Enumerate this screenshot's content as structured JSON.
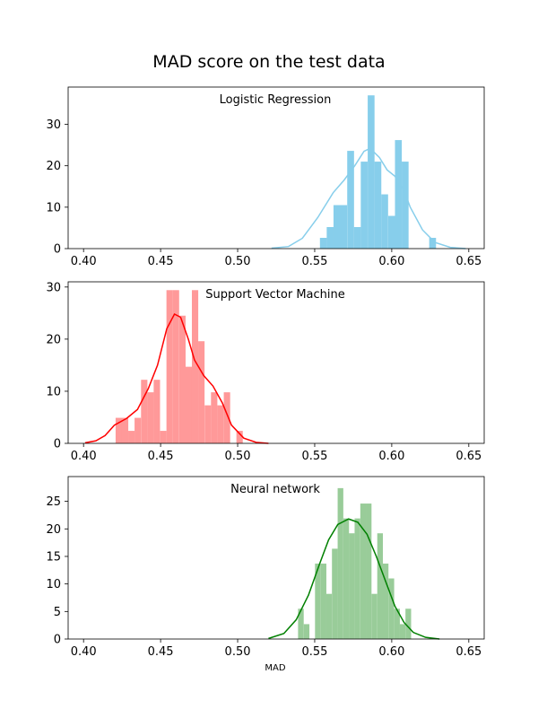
{
  "figure": {
    "title": "MAD score on the test data",
    "xlabel": "MAD"
  },
  "chart_data": [
    {
      "type": "histogram",
      "title": "Logistic Regression",
      "color": "#87ceeb",
      "bin_width": 0.00443,
      "x_ticks": [
        "0.40",
        "0.45",
        "0.50",
        "0.55",
        "0.60",
        "0.65"
      ],
      "y_ticks": [
        "0",
        "10",
        "20",
        "30"
      ],
      "xlim": [
        0.39,
        0.66
      ],
      "ylim": [
        0,
        39
      ],
      "bars": [
        {
          "x": 0.5534,
          "y": 2.6
        },
        {
          "x": 0.5578,
          "y": 5.2
        },
        {
          "x": 0.5622,
          "y": 10.5
        },
        {
          "x": 0.5666,
          "y": 10.5
        },
        {
          "x": 0.5711,
          "y": 23.6
        },
        {
          "x": 0.5755,
          "y": 5.2
        },
        {
          "x": 0.5799,
          "y": 21.0
        },
        {
          "x": 0.5844,
          "y": 37.0
        },
        {
          "x": 0.5888,
          "y": 21.0
        },
        {
          "x": 0.5932,
          "y": 13.1
        },
        {
          "x": 0.5977,
          "y": 7.9
        },
        {
          "x": 0.6021,
          "y": 26.2
        },
        {
          "x": 0.6065,
          "y": 21.0
        },
        {
          "x": 0.6243,
          "y": 2.6
        }
      ],
      "kde": [
        [
          0.522,
          0.1
        ],
        [
          0.533,
          0.5
        ],
        [
          0.542,
          2.5
        ],
        [
          0.552,
          7.5
        ],
        [
          0.562,
          13.5
        ],
        [
          0.569,
          16.5
        ],
        [
          0.576,
          20.0
        ],
        [
          0.582,
          23.5
        ],
        [
          0.586,
          24.2
        ],
        [
          0.592,
          22.0
        ],
        [
          0.597,
          19.0
        ],
        [
          0.602,
          17.5
        ],
        [
          0.608,
          14.0
        ],
        [
          0.612,
          10.0
        ],
        [
          0.62,
          4.5
        ],
        [
          0.628,
          1.5
        ],
        [
          0.638,
          0.3
        ],
        [
          0.648,
          0.0
        ]
      ]
    },
    {
      "type": "histogram",
      "title": "Support Vector Machine",
      "color": "#ff9999",
      "line_color": "#ff0000",
      "bin_width": 0.00413,
      "x_ticks": [
        "0.40",
        "0.45",
        "0.50",
        "0.55",
        "0.60",
        "0.65"
      ],
      "y_ticks": [
        "0",
        "10",
        "20",
        "30"
      ],
      "xlim": [
        0.39,
        0.66
      ],
      "ylim": [
        0,
        31
      ],
      "bars": [
        {
          "x": 0.4208,
          "y": 4.9
        },
        {
          "x": 0.4249,
          "y": 4.9
        },
        {
          "x": 0.429,
          "y": 2.4
        },
        {
          "x": 0.4331,
          "y": 4.9
        },
        {
          "x": 0.4373,
          "y": 12.2
        },
        {
          "x": 0.4414,
          "y": 9.8
        },
        {
          "x": 0.4455,
          "y": 12.2
        },
        {
          "x": 0.4497,
          "y": 2.4
        },
        {
          "x": 0.4538,
          "y": 29.4
        },
        {
          "x": 0.4579,
          "y": 29.4
        },
        {
          "x": 0.4621,
          "y": 24.5
        },
        {
          "x": 0.4662,
          "y": 14.7
        },
        {
          "x": 0.4703,
          "y": 29.4
        },
        {
          "x": 0.4744,
          "y": 19.6
        },
        {
          "x": 0.4786,
          "y": 7.3
        },
        {
          "x": 0.4827,
          "y": 9.8
        },
        {
          "x": 0.4868,
          "y": 7.3
        },
        {
          "x": 0.491,
          "y": 9.8
        },
        {
          "x": 0.4992,
          "y": 2.4
        }
      ],
      "kde": [
        [
          0.401,
          0.1
        ],
        [
          0.408,
          0.5
        ],
        [
          0.414,
          1.5
        ],
        [
          0.42,
          3.5
        ],
        [
          0.428,
          4.8
        ],
        [
          0.435,
          6.5
        ],
        [
          0.442,
          10.5
        ],
        [
          0.448,
          15.0
        ],
        [
          0.454,
          22.0
        ],
        [
          0.459,
          24.8
        ],
        [
          0.463,
          24.2
        ],
        [
          0.468,
          20.0
        ],
        [
          0.472,
          16.0
        ],
        [
          0.478,
          13.0
        ],
        [
          0.484,
          11.0
        ],
        [
          0.49,
          7.8
        ],
        [
          0.496,
          3.5
        ],
        [
          0.504,
          1.0
        ],
        [
          0.512,
          0.2
        ],
        [
          0.52,
          0.0
        ]
      ]
    },
    {
      "type": "histogram",
      "title": "Neural network",
      "color": "#99cc99",
      "line_color": "#008000",
      "bin_width": 0.00367,
      "x_ticks": [
        "0.40",
        "0.45",
        "0.50",
        "0.55",
        "0.60",
        "0.65"
      ],
      "y_ticks": [
        "0",
        "5",
        "10",
        "15",
        "20",
        "25"
      ],
      "xlim": [
        0.39,
        0.66
      ],
      "ylim": [
        0,
        29.5
      ],
      "bars": [
        {
          "x": 0.5392,
          "y": 5.5
        },
        {
          "x": 0.5429,
          "y": 2.7
        },
        {
          "x": 0.5502,
          "y": 13.7
        },
        {
          "x": 0.5539,
          "y": 13.7
        },
        {
          "x": 0.5575,
          "y": 8.2
        },
        {
          "x": 0.5612,
          "y": 16.4
        },
        {
          "x": 0.5649,
          "y": 27.4
        },
        {
          "x": 0.5686,
          "y": 21.9
        },
        {
          "x": 0.5722,
          "y": 19.2
        },
        {
          "x": 0.5759,
          "y": 21.9
        },
        {
          "x": 0.5796,
          "y": 24.6
        },
        {
          "x": 0.5832,
          "y": 24.6
        },
        {
          "x": 0.5869,
          "y": 8.2
        },
        {
          "x": 0.5906,
          "y": 19.2
        },
        {
          "x": 0.5942,
          "y": 13.7
        },
        {
          "x": 0.5979,
          "y": 11.0
        },
        {
          "x": 0.6016,
          "y": 5.5
        },
        {
          "x": 0.6052,
          "y": 2.7
        },
        {
          "x": 0.6089,
          "y": 5.5
        }
      ],
      "kde": [
        [
          0.52,
          0.1
        ],
        [
          0.53,
          1.0
        ],
        [
          0.538,
          3.5
        ],
        [
          0.546,
          8.0
        ],
        [
          0.553,
          13.5
        ],
        [
          0.559,
          18.0
        ],
        [
          0.565,
          20.8
        ],
        [
          0.572,
          21.8
        ],
        [
          0.578,
          21.2
        ],
        [
          0.584,
          19.0
        ],
        [
          0.59,
          15.0
        ],
        [
          0.596,
          10.5
        ],
        [
          0.602,
          6.0
        ],
        [
          0.608,
          3.0
        ],
        [
          0.614,
          1.2
        ],
        [
          0.622,
          0.3
        ],
        [
          0.631,
          0.0
        ]
      ]
    }
  ]
}
